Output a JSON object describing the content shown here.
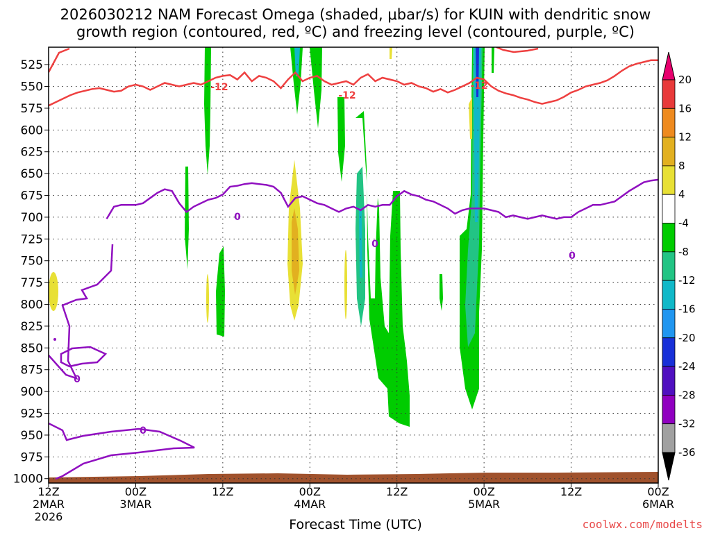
{
  "title_line1": "2026030212 NAM Forecast Omega (shaded, μbar/s) for KUIN with dendritic snow",
  "title_line2": "growth region (contoured, red, ºC) and freezing level (contoured, purple, ºC)",
  "xlabel": "Forecast Time (UTC)",
  "credit": "coolwx.com/modelts",
  "chart_data": {
    "type": "time-height",
    "x_ticks": [
      {
        "hour": 0,
        "lines": [
          "12Z",
          "2MAR",
          "2026"
        ]
      },
      {
        "hour": 12,
        "lines": [
          "00Z",
          "3MAR"
        ]
      },
      {
        "hour": 24,
        "lines": [
          "12Z"
        ]
      },
      {
        "hour": 36,
        "lines": [
          "00Z",
          "4MAR"
        ]
      },
      {
        "hour": 48,
        "lines": [
          "12Z"
        ]
      },
      {
        "hour": 60,
        "lines": [
          "00Z",
          "5MAR"
        ]
      },
      {
        "hour": 72,
        "lines": [
          "12Z"
        ]
      },
      {
        "hour": 84,
        "lines": [
          "00Z",
          "6MAR"
        ]
      }
    ],
    "xlim": [
      0,
      84
    ],
    "y_ticks": [
      525,
      550,
      575,
      600,
      625,
      650,
      675,
      700,
      725,
      750,
      775,
      800,
      825,
      850,
      875,
      900,
      925,
      950,
      975,
      1000
    ],
    "ylim": [
      1005,
      505
    ],
    "colorbar": {
      "labels": [
        "20",
        "16",
        "12",
        "8",
        "4",
        "-4",
        "-8",
        "-12",
        "-16",
        "-20",
        "-24",
        "-28",
        "-32",
        "-36"
      ],
      "colors": [
        "#e8006e",
        "#e83a3a",
        "#ee8a1e",
        "#e2b020",
        "#e8e035",
        "#ffffff",
        "#00cc00",
        "#22c484",
        "#10b8c8",
        "#2096f0",
        "#1830d8",
        "#5010c0",
        "#9000c0",
        "#a0a0a0",
        "#000000"
      ]
    },
    "dgz_contour": {
      "label": "-12",
      "color": "#ee4040",
      "points": [
        [
          0,
          572
        ],
        [
          1,
          568
        ],
        [
          2,
          564
        ],
        [
          3,
          560
        ],
        [
          4,
          557
        ],
        [
          5,
          555
        ],
        [
          6,
          553
        ],
        [
          7,
          552
        ],
        [
          8,
          554
        ],
        [
          9,
          556
        ],
        [
          10,
          555
        ],
        [
          11,
          550
        ],
        [
          12,
          548
        ],
        [
          13,
          550
        ],
        [
          14,
          554
        ],
        [
          15,
          550
        ],
        [
          16,
          546
        ],
        [
          17,
          548
        ],
        [
          18,
          550
        ],
        [
          19,
          548
        ],
        [
          20,
          546
        ],
        [
          21,
          548
        ],
        [
          22,
          544
        ],
        [
          23,
          540
        ],
        [
          24,
          538
        ],
        [
          25,
          537
        ],
        [
          26,
          542
        ],
        [
          27,
          534
        ],
        [
          28,
          544
        ],
        [
          29,
          538
        ],
        [
          30,
          540
        ],
        [
          31,
          544
        ],
        [
          32,
          552
        ],
        [
          33,
          542
        ],
        [
          34,
          534
        ],
        [
          35,
          544
        ],
        [
          36,
          540
        ],
        [
          37,
          538
        ],
        [
          38,
          544
        ],
        [
          39,
          548
        ],
        [
          40,
          546
        ],
        [
          41,
          544
        ],
        [
          42,
          548
        ],
        [
          43,
          540
        ],
        [
          44,
          536
        ],
        [
          45,
          544
        ],
        [
          46,
          540
        ],
        [
          47,
          542
        ],
        [
          48,
          544
        ],
        [
          49,
          548
        ],
        [
          50,
          546
        ],
        [
          51,
          550
        ],
        [
          52,
          552
        ],
        [
          53,
          556
        ],
        [
          54,
          553
        ],
        [
          55,
          557
        ],
        [
          56,
          554
        ],
        [
          57,
          550
        ],
        [
          58,
          546
        ],
        [
          59,
          540
        ],
        [
          60,
          542
        ],
        [
          61,
          550
        ],
        [
          62,
          555
        ],
        [
          63,
          558
        ],
        [
          64,
          560
        ],
        [
          65,
          563
        ],
        [
          66,
          565
        ],
        [
          67,
          568
        ],
        [
          68,
          570
        ],
        [
          69,
          568
        ],
        [
          70,
          566
        ],
        [
          71,
          562
        ],
        [
          72,
          557
        ],
        [
          73,
          554
        ],
        [
          74,
          550
        ],
        [
          75,
          548
        ],
        [
          76,
          546
        ],
        [
          77,
          543
        ],
        [
          78,
          538
        ],
        [
          79,
          532
        ],
        [
          80,
          527
        ],
        [
          81,
          524
        ],
        [
          82,
          522
        ],
        [
          83,
          520
        ],
        [
          84,
          520
        ]
      ]
    },
    "freezing_contour": {
      "label": "0",
      "color": "#9010c0",
      "points": [
        [
          8,
          702
        ],
        [
          9,
          688
        ],
        [
          10,
          686
        ],
        [
          11,
          686
        ],
        [
          12,
          686
        ],
        [
          13,
          684
        ],
        [
          14,
          678
        ],
        [
          15,
          672
        ],
        [
          16,
          668
        ],
        [
          17,
          670
        ],
        [
          18,
          684
        ],
        [
          19,
          694
        ],
        [
          20,
          688
        ],
        [
          21,
          684
        ],
        [
          22,
          680
        ],
        [
          23,
          678
        ],
        [
          24,
          674
        ],
        [
          25,
          665
        ],
        [
          26,
          664
        ],
        [
          27,
          662
        ],
        [
          28,
          661
        ],
        [
          29,
          662
        ],
        [
          30,
          663
        ],
        [
          31,
          665
        ],
        [
          32,
          672
        ],
        [
          33,
          688
        ],
        [
          34,
          678
        ],
        [
          35,
          676
        ],
        [
          36,
          680
        ],
        [
          37,
          684
        ],
        [
          38,
          686
        ],
        [
          39,
          690
        ],
        [
          40,
          694
        ],
        [
          41,
          690
        ],
        [
          42,
          688
        ],
        [
          43,
          692
        ],
        [
          44,
          686
        ],
        [
          45,
          688
        ],
        [
          46,
          686
        ],
        [
          47,
          686
        ],
        [
          48,
          676
        ],
        [
          49,
          670
        ],
        [
          50,
          674
        ],
        [
          51,
          676
        ],
        [
          52,
          680
        ],
        [
          53,
          682
        ],
        [
          54,
          686
        ],
        [
          55,
          690
        ],
        [
          56,
          696
        ],
        [
          57,
          692
        ],
        [
          58,
          690
        ],
        [
          59,
          690
        ],
        [
          60,
          690
        ],
        [
          61,
          692
        ],
        [
          62,
          694
        ],
        [
          63,
          700
        ],
        [
          64,
          698
        ],
        [
          65,
          700
        ],
        [
          66,
          702
        ],
        [
          67,
          700
        ],
        [
          68,
          698
        ],
        [
          69,
          700
        ],
        [
          70,
          702
        ],
        [
          71,
          700
        ],
        [
          72,
          700
        ],
        [
          73,
          694
        ],
        [
          74,
          690
        ],
        [
          75,
          686
        ],
        [
          76,
          686
        ],
        [
          77,
          684
        ],
        [
          78,
          682
        ],
        [
          79,
          676
        ],
        [
          80,
          670
        ],
        [
          81,
          665
        ],
        [
          82,
          660
        ],
        [
          83,
          658
        ],
        [
          84,
          657
        ]
      ]
    }
  }
}
